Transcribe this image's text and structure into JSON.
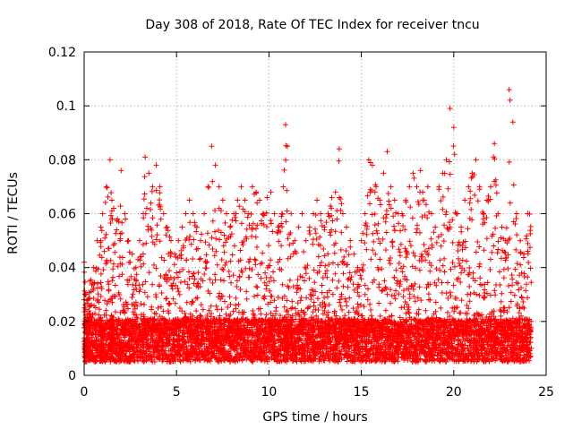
{
  "chart_data": {
    "type": "scatter",
    "title": "Day 308 of 2018, Rate Of TEC Index for receiver tncu",
    "xlabel": "GPS time / hours",
    "ylabel": "ROTI / TECUs",
    "xlim": [
      0,
      25
    ],
    "ylim": [
      0,
      0.12
    ],
    "x_ticks": [
      "0",
      "5",
      "10",
      "15",
      "20",
      "25"
    ],
    "y_ticks": [
      "0",
      "0.02",
      "0.04",
      "0.06",
      "0.08",
      "0.1",
      "0.12"
    ],
    "grid": true,
    "marker": "+",
    "color": "#ff0000",
    "series": [
      {
        "x": [
          0.0,
          0.1,
          0.2,
          0.3,
          0.5,
          0.7,
          0.9,
          1.0,
          1.2,
          1.4,
          1.5,
          1.6,
          1.8,
          2.0,
          2.2,
          2.4,
          2.6,
          2.8,
          3.0,
          3.2,
          3.3,
          3.5,
          3.7,
          3.9,
          4.1,
          4.3,
          4.5,
          4.7,
          4.9,
          5.1,
          5.3,
          5.5,
          5.7,
          5.9,
          6.1,
          6.3,
          6.5,
          6.7,
          6.9,
          7.1,
          7.3,
          7.5,
          7.7,
          7.9,
          8.1,
          8.3,
          8.5,
          8.7,
          8.9,
          9.1,
          9.3,
          9.5,
          9.7,
          9.9,
          10.1,
          10.3,
          10.5,
          10.7,
          10.9,
          11.0,
          11.2,
          11.4,
          11.6,
          11.8,
          12.0,
          12.2,
          12.4,
          12.6,
          12.8,
          13.0,
          13.2,
          13.4,
          13.6,
          13.8,
          14.0,
          14.2,
          14.4,
          14.6,
          14.8,
          15.0,
          15.2,
          15.4,
          15.6,
          15.8,
          16.0,
          16.2,
          16.4,
          16.6,
          16.8,
          17.0,
          17.2,
          17.4,
          17.6,
          17.8,
          18.0,
          18.2,
          18.4,
          18.6,
          18.8,
          19.0,
          19.2,
          19.4,
          19.6,
          19.8,
          20.0,
          20.2,
          20.4,
          20.6,
          20.8,
          21.0,
          21.2,
          21.4,
          21.6,
          21.8,
          22.0,
          22.2,
          22.4,
          22.6,
          22.8,
          23.0,
          23.2,
          23.4,
          23.6,
          23.8,
          24.0
        ],
        "y_max": [
          0.042,
          0.03,
          0.028,
          0.035,
          0.04,
          0.05,
          0.055,
          0.06,
          0.07,
          0.08,
          0.065,
          0.062,
          0.058,
          0.076,
          0.06,
          0.05,
          0.045,
          0.04,
          0.05,
          0.06,
          0.081,
          0.075,
          0.07,
          0.078,
          0.07,
          0.06,
          0.055,
          0.05,
          0.045,
          0.05,
          0.055,
          0.06,
          0.065,
          0.06,
          0.055,
          0.05,
          0.06,
          0.07,
          0.085,
          0.078,
          0.07,
          0.065,
          0.06,
          0.055,
          0.06,
          0.065,
          0.07,
          0.065,
          0.06,
          0.07,
          0.068,
          0.065,
          0.06,
          0.066,
          0.068,
          0.06,
          0.055,
          0.06,
          0.093,
          0.085,
          0.06,
          0.05,
          0.055,
          0.06,
          0.05,
          0.055,
          0.06,
          0.065,
          0.06,
          0.055,
          0.06,
          0.066,
          0.068,
          0.084,
          0.06,
          0.055,
          0.05,
          0.045,
          0.04,
          0.05,
          0.06,
          0.08,
          0.078,
          0.07,
          0.065,
          0.075,
          0.083,
          0.07,
          0.065,
          0.06,
          0.06,
          0.065,
          0.07,
          0.075,
          0.07,
          0.076,
          0.065,
          0.07,
          0.06,
          0.055,
          0.07,
          0.075,
          0.08,
          0.099,
          0.092,
          0.06,
          0.055,
          0.065,
          0.07,
          0.075,
          0.08,
          0.07,
          0.06,
          0.065,
          0.07,
          0.086,
          0.06,
          0.055,
          0.05,
          0.106,
          0.094,
          0.06,
          0.05,
          0.045,
          0.06
        ]
      }
    ]
  }
}
